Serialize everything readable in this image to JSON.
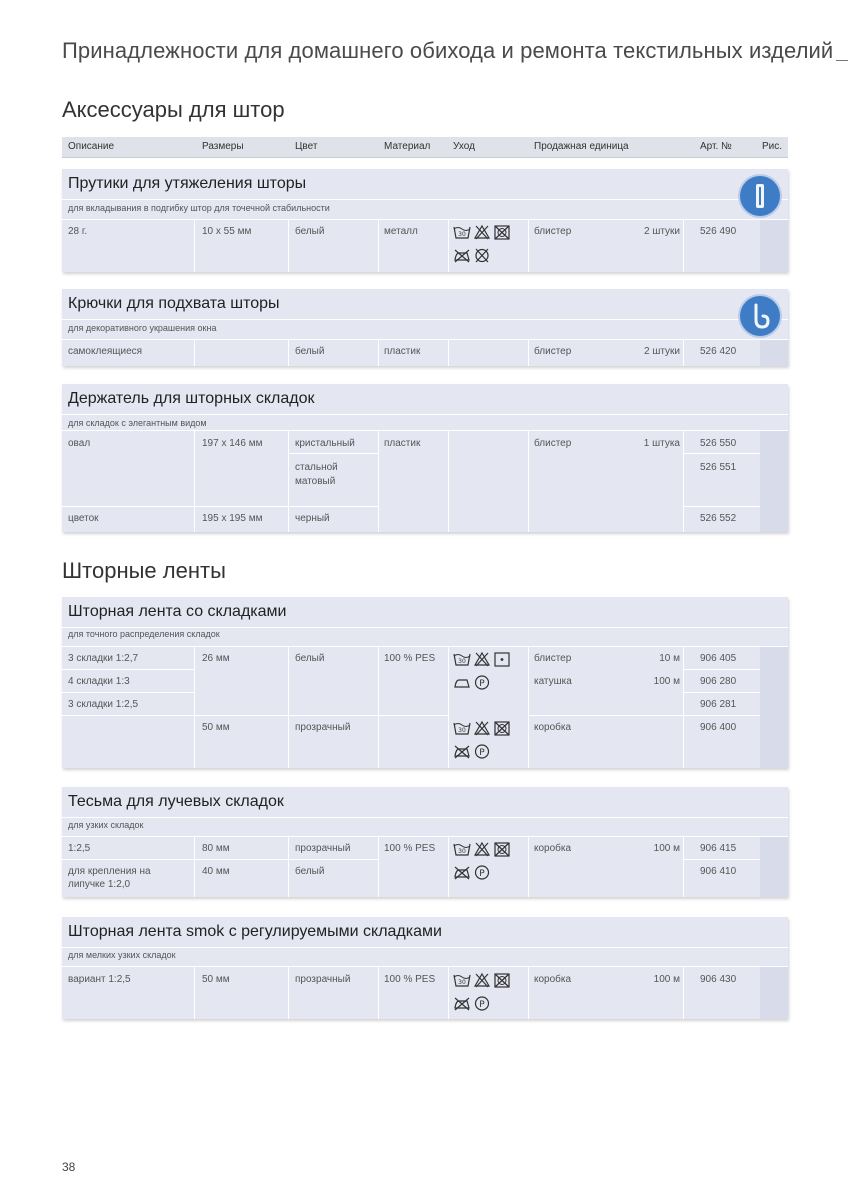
{
  "page_header": "Принадлежности для домашнего обихода и ремонта текстильных изделий",
  "page_number": "38",
  "sections": [
    {
      "title": "Аксессуары для штор"
    },
    {
      "title": "Шторные ленты"
    }
  ],
  "columns": [
    "Описание",
    "Размеры",
    "Цвет",
    "Материал",
    "Уход",
    "Продажная единица",
    "Арт. №",
    "Рис."
  ],
  "blocks": [
    {
      "title": "Прутики для утяжеления шторы",
      "subtitle": "для вкладывания в подгибку штор для точечной стабильности",
      "icon": "curtain-weight-icon",
      "rows": [
        {
          "desc": "28 г.",
          "size": "10 x 55 мм",
          "color": "белый",
          "material": "металл",
          "care": "wash-30, no-bleach, no-tumble, no-iron, no-dryclean",
          "unit": "блистер",
          "qty": "2 штуки",
          "art": "526 490"
        }
      ]
    },
    {
      "title": "Крючки для подхвата шторы",
      "subtitle": "для декоративного украшения окна",
      "icon": "hook-icon",
      "rows": [
        {
          "desc": "самоклеящиеся",
          "size": "",
          "color": "белый",
          "material": "пластик",
          "unit": "блистер",
          "qty": "2 штуки",
          "art": "526 420"
        }
      ]
    },
    {
      "title": "Держатель для шторных складок",
      "subtitle": "для складок с элегантным видом",
      "rows": [
        {
          "desc": "овал",
          "size": "197 x 146 мм",
          "color": "кристальный",
          "material": "пластик",
          "unit": "блистер",
          "qty": "1 штука",
          "art": "526 550"
        },
        {
          "desc": "",
          "size": "",
          "color_line1": "стальной",
          "color_line2": "матовый",
          "art": "526 551"
        },
        {
          "desc": "цветок",
          "size": "195 x 195 мм",
          "color": "черный",
          "art": "526 552"
        }
      ]
    },
    {
      "title": "Шторная лента со складками",
      "subtitle": "для точного распределения складок",
      "rows": [
        {
          "desc": "3 складки 1:2,7",
          "size": "26 мм",
          "color": "белый",
          "material": "100 % PES",
          "unit": "блистер",
          "qty": "10 м",
          "art": "906 405"
        },
        {
          "desc": "4 складки 1:3",
          "unit": "катушка",
          "qty": "100 м",
          "art": "906 280"
        },
        {
          "desc": "3 складки 1:2,5",
          "art": "906 281"
        },
        {
          "size": "50 мм",
          "color": "прозрачный",
          "unit": "коробка",
          "art": "906 400"
        }
      ]
    },
    {
      "title": "Тесьма для лучевых складок",
      "subtitle": "для узких складок",
      "rows": [
        {
          "desc": "1:2,5",
          "size": "80 мм",
          "color": "прозрачный",
          "material": "100 % PES",
          "unit": "коробка",
          "qty": "100 м",
          "art": "906 415"
        },
        {
          "desc_line1": "для крепления на",
          "desc_line2": "липучке 1:2,0",
          "size": "40 мм",
          "color": "белый",
          "art": "906 410"
        }
      ]
    },
    {
      "title": "Шторная лента smok с регулируемыми складками",
      "subtitle": "для мелких узких складок",
      "rows": [
        {
          "desc": "вариант 1:2,5",
          "size": "50 мм",
          "color": "прозрачный",
          "material": "100 % PES",
          "unit": "коробка",
          "qty": "100 м",
          "art": "906 430"
        }
      ]
    }
  ],
  "colors": {
    "block_bg": "#e4e7f1",
    "header_bg": "#dfe2e8",
    "icon_blue": "#3f7cc6"
  }
}
